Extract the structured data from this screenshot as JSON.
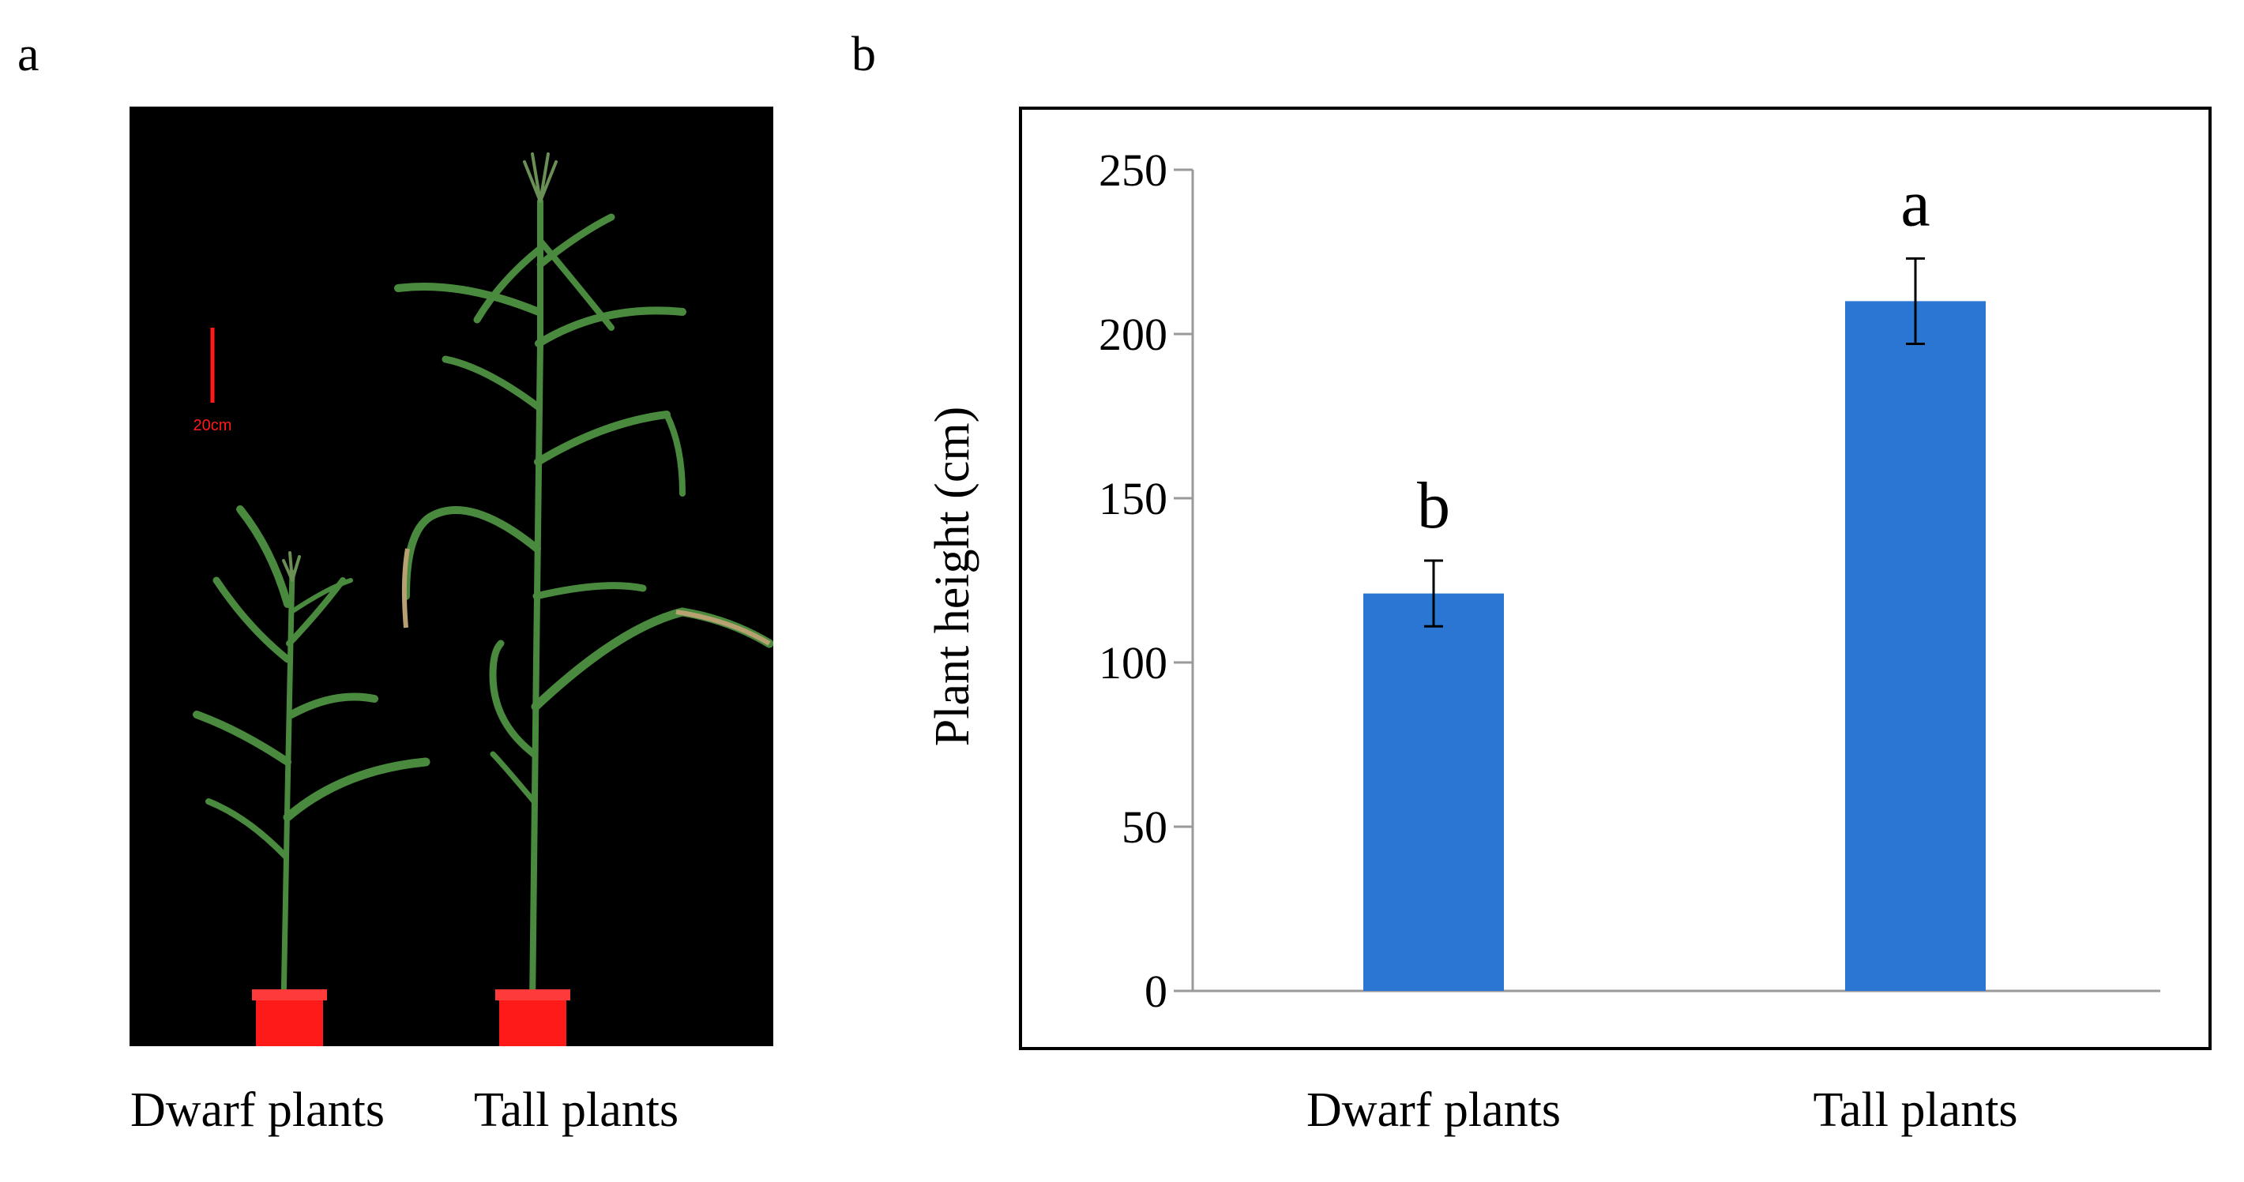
{
  "panels": {
    "a": {
      "label": "a",
      "scale_bar_text": "20cm",
      "captions": [
        "Dwarf plants",
        "Tall plants"
      ]
    },
    "b": {
      "label": "b"
    }
  },
  "colors": {
    "bar": "#2a76d2",
    "axis": "#9a9a9a",
    "photo_background": "#000000",
    "pot": "#ff1a1a",
    "scale_bar": "#ff1a1a",
    "plant_green": "#3f7d3a"
  },
  "chart_data": {
    "type": "bar",
    "categories": [
      "Dwarf plants",
      "Tall plants"
    ],
    "values": [
      121,
      210
    ],
    "errors": [
      10,
      13
    ],
    "significance_letters": [
      "b",
      "a"
    ],
    "ylabel": "Plant height (cm)",
    "xlabel": "",
    "title": "",
    "ylim": [
      0,
      250
    ],
    "yticks": [
      0,
      50,
      100,
      150,
      200,
      250
    ],
    "grid": false,
    "legend": "none"
  }
}
